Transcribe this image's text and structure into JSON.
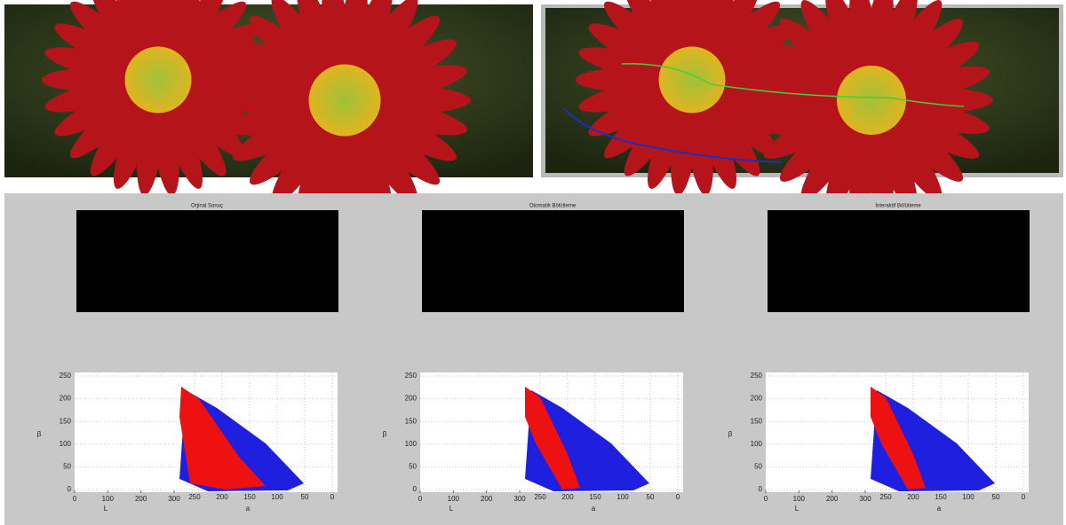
{
  "panels": [
    {
      "title": "Orjinal Sonuç",
      "plot": {
        "ylabel": "β",
        "yticks": [
          0,
          50,
          100,
          150,
          200,
          250
        ],
        "xlabel": "L",
        "xticks": [
          0,
          100,
          200,
          300
        ],
        "alabel": "a",
        "aticks": [
          250,
          200,
          150,
          100,
          50,
          0
        ]
      }
    },
    {
      "title": "Otomatik Bölütleme",
      "plot": {
        "ylabel": "β",
        "yticks": [
          0,
          50,
          100,
          150,
          200,
          250
        ],
        "xlabel": "L",
        "xticks": [
          0,
          100,
          200,
          300
        ],
        "alabel": "a",
        "aticks": [
          250,
          200,
          150,
          100,
          50,
          0
        ]
      }
    },
    {
      "title": "İnteraktif Bölütleme",
      "plot": {
        "ylabel": "β",
        "yticks": [
          0,
          50,
          100,
          150,
          200,
          250
        ],
        "xlabel": "L",
        "xticks": [
          0,
          100,
          200,
          300
        ],
        "alabel": "a",
        "aticks": [
          250,
          200,
          150,
          100,
          50,
          0
        ]
      }
    }
  ]
}
